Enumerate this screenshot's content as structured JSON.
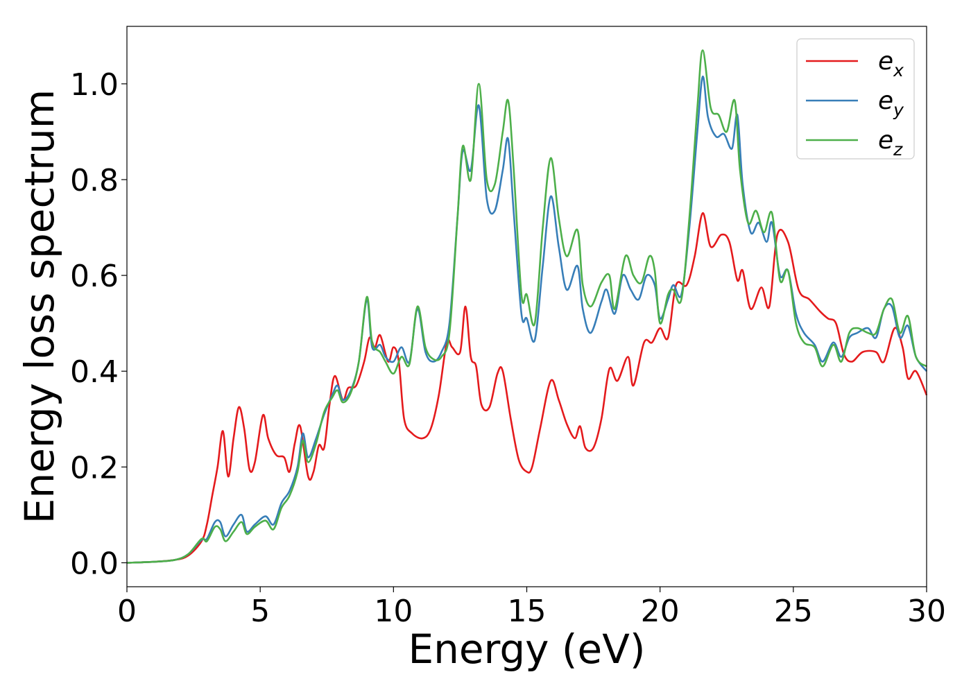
{
  "chart_data": {
    "type": "line",
    "title": "",
    "xlabel": "Energy (eV)",
    "ylabel": "Energy loss spectrum",
    "xlim": [
      0,
      30
    ],
    "ylim": [
      -0.05,
      1.12
    ],
    "xticks": [
      0,
      5,
      10,
      15,
      20,
      25,
      30
    ],
    "xtick_labels": [
      "0",
      "5",
      "10",
      "15",
      "20",
      "25",
      "30"
    ],
    "yticks": [
      0.0,
      0.2,
      0.4,
      0.6,
      0.8,
      1.0
    ],
    "ytick_labels": [
      "0.0",
      "0.2",
      "0.4",
      "0.6",
      "0.8",
      "1.0"
    ],
    "grid": false,
    "legend_position": "top-right",
    "series": [
      {
        "name": "e_x",
        "label_base": "e",
        "label_sub": "x",
        "color": "#e41a1c",
        "points": [
          [
            0,
            0
          ],
          [
            1,
            0.002
          ],
          [
            1.8,
            0.006
          ],
          [
            2.3,
            0.015
          ],
          [
            2.8,
            0.045
          ],
          [
            3.0,
            0.08
          ],
          [
            3.2,
            0.14
          ],
          [
            3.4,
            0.2
          ],
          [
            3.6,
            0.275
          ],
          [
            3.8,
            0.18
          ],
          [
            4.0,
            0.26
          ],
          [
            4.2,
            0.325
          ],
          [
            4.4,
            0.28
          ],
          [
            4.6,
            0.195
          ],
          [
            4.8,
            0.21
          ],
          [
            5.1,
            0.308
          ],
          [
            5.3,
            0.26
          ],
          [
            5.6,
            0.225
          ],
          [
            5.9,
            0.22
          ],
          [
            6.1,
            0.19
          ],
          [
            6.3,
            0.25
          ],
          [
            6.5,
            0.285
          ],
          [
            6.8,
            0.18
          ],
          [
            7.0,
            0.19
          ],
          [
            7.2,
            0.245
          ],
          [
            7.4,
            0.24
          ],
          [
            7.6,
            0.33
          ],
          [
            7.8,
            0.39
          ],
          [
            8.1,
            0.34
          ],
          [
            8.3,
            0.365
          ],
          [
            8.6,
            0.37
          ],
          [
            8.9,
            0.42
          ],
          [
            9.1,
            0.47
          ],
          [
            9.3,
            0.45
          ],
          [
            9.5,
            0.475
          ],
          [
            9.8,
            0.42
          ],
          [
            10.0,
            0.45
          ],
          [
            10.2,
            0.42
          ],
          [
            10.4,
            0.3
          ],
          [
            10.7,
            0.27
          ],
          [
            11.1,
            0.26
          ],
          [
            11.4,
            0.28
          ],
          [
            11.7,
            0.35
          ],
          [
            12.0,
            0.46
          ],
          [
            12.2,
            0.45
          ],
          [
            12.5,
            0.44
          ],
          [
            12.7,
            0.535
          ],
          [
            12.9,
            0.43
          ],
          [
            13.1,
            0.41
          ],
          [
            13.3,
            0.33
          ],
          [
            13.6,
            0.325
          ],
          [
            13.9,
            0.395
          ],
          [
            14.1,
            0.4
          ],
          [
            14.4,
            0.3
          ],
          [
            14.7,
            0.215
          ],
          [
            15.0,
            0.19
          ],
          [
            15.2,
            0.2
          ],
          [
            15.5,
            0.28
          ],
          [
            15.9,
            0.38
          ],
          [
            16.2,
            0.34
          ],
          [
            16.5,
            0.29
          ],
          [
            16.8,
            0.26
          ],
          [
            17.0,
            0.285
          ],
          [
            17.2,
            0.24
          ],
          [
            17.5,
            0.24
          ],
          [
            17.8,
            0.3
          ],
          [
            18.1,
            0.405
          ],
          [
            18.4,
            0.38
          ],
          [
            18.8,
            0.43
          ],
          [
            19.0,
            0.37
          ],
          [
            19.4,
            0.46
          ],
          [
            19.7,
            0.46
          ],
          [
            20.0,
            0.49
          ],
          [
            20.3,
            0.47
          ],
          [
            20.6,
            0.58
          ],
          [
            21.0,
            0.58
          ],
          [
            21.3,
            0.64
          ],
          [
            21.6,
            0.73
          ],
          [
            21.9,
            0.66
          ],
          [
            22.3,
            0.685
          ],
          [
            22.6,
            0.67
          ],
          [
            22.9,
            0.59
          ],
          [
            23.1,
            0.61
          ],
          [
            23.4,
            0.53
          ],
          [
            23.8,
            0.575
          ],
          [
            24.1,
            0.535
          ],
          [
            24.4,
            0.685
          ],
          [
            24.8,
            0.67
          ],
          [
            25.2,
            0.57
          ],
          [
            25.6,
            0.55
          ],
          [
            26.0,
            0.525
          ],
          [
            26.3,
            0.51
          ],
          [
            26.6,
            0.5
          ],
          [
            26.9,
            0.435
          ],
          [
            27.2,
            0.42
          ],
          [
            27.6,
            0.44
          ],
          [
            28.1,
            0.44
          ],
          [
            28.4,
            0.42
          ],
          [
            28.8,
            0.49
          ],
          [
            29.1,
            0.45
          ],
          [
            29.3,
            0.385
          ],
          [
            29.6,
            0.4
          ],
          [
            30,
            0.35
          ]
        ]
      },
      {
        "name": "e_y",
        "label_base": "e",
        "label_sub": "y",
        "color": "#377eb8",
        "points": [
          [
            0,
            0
          ],
          [
            1,
            0.002
          ],
          [
            1.8,
            0.006
          ],
          [
            2.3,
            0.018
          ],
          [
            2.8,
            0.048
          ],
          [
            3.0,
            0.05
          ],
          [
            3.3,
            0.085
          ],
          [
            3.5,
            0.085
          ],
          [
            3.7,
            0.055
          ],
          [
            4.0,
            0.08
          ],
          [
            4.3,
            0.1
          ],
          [
            4.5,
            0.065
          ],
          [
            4.8,
            0.08
          ],
          [
            5.2,
            0.097
          ],
          [
            5.5,
            0.08
          ],
          [
            5.8,
            0.125
          ],
          [
            6.1,
            0.15
          ],
          [
            6.4,
            0.2
          ],
          [
            6.6,
            0.27
          ],
          [
            6.8,
            0.22
          ],
          [
            7.1,
            0.26
          ],
          [
            7.4,
            0.31
          ],
          [
            7.7,
            0.35
          ],
          [
            7.9,
            0.37
          ],
          [
            8.1,
            0.34
          ],
          [
            8.4,
            0.36
          ],
          [
            8.7,
            0.42
          ],
          [
            9.0,
            0.55
          ],
          [
            9.2,
            0.45
          ],
          [
            9.5,
            0.455
          ],
          [
            9.7,
            0.43
          ],
          [
            10.0,
            0.42
          ],
          [
            10.3,
            0.45
          ],
          [
            10.6,
            0.42
          ],
          [
            10.9,
            0.53
          ],
          [
            11.2,
            0.44
          ],
          [
            11.5,
            0.42
          ],
          [
            11.8,
            0.44
          ],
          [
            12.1,
            0.5
          ],
          [
            12.4,
            0.72
          ],
          [
            12.6,
            0.86
          ],
          [
            12.9,
            0.82
          ],
          [
            13.2,
            0.955
          ],
          [
            13.5,
            0.76
          ],
          [
            13.8,
            0.735
          ],
          [
            14.1,
            0.82
          ],
          [
            14.3,
            0.885
          ],
          [
            14.5,
            0.74
          ],
          [
            14.8,
            0.52
          ],
          [
            15.0,
            0.51
          ],
          [
            15.3,
            0.465
          ],
          [
            15.6,
            0.62
          ],
          [
            15.9,
            0.765
          ],
          [
            16.2,
            0.66
          ],
          [
            16.5,
            0.57
          ],
          [
            16.9,
            0.62
          ],
          [
            17.1,
            0.53
          ],
          [
            17.4,
            0.48
          ],
          [
            17.8,
            0.545
          ],
          [
            18.0,
            0.57
          ],
          [
            18.3,
            0.52
          ],
          [
            18.6,
            0.6
          ],
          [
            18.9,
            0.57
          ],
          [
            19.2,
            0.55
          ],
          [
            19.5,
            0.6
          ],
          [
            19.8,
            0.58
          ],
          [
            20.0,
            0.51
          ],
          [
            20.3,
            0.55
          ],
          [
            20.5,
            0.58
          ],
          [
            20.8,
            0.56
          ],
          [
            21.1,
            0.7
          ],
          [
            21.4,
            0.9
          ],
          [
            21.6,
            1.015
          ],
          [
            21.8,
            0.93
          ],
          [
            22.1,
            0.89
          ],
          [
            22.4,
            0.895
          ],
          [
            22.7,
            0.865
          ],
          [
            22.9,
            0.935
          ],
          [
            23.1,
            0.79
          ],
          [
            23.4,
            0.69
          ],
          [
            23.7,
            0.71
          ],
          [
            24.0,
            0.67
          ],
          [
            24.2,
            0.71
          ],
          [
            24.5,
            0.6
          ],
          [
            24.8,
            0.61
          ],
          [
            25.1,
            0.52
          ],
          [
            25.4,
            0.48
          ],
          [
            25.8,
            0.455
          ],
          [
            26.1,
            0.42
          ],
          [
            26.5,
            0.46
          ],
          [
            26.8,
            0.43
          ],
          [
            27.1,
            0.47
          ],
          [
            27.4,
            0.48
          ],
          [
            27.8,
            0.49
          ],
          [
            28.1,
            0.47
          ],
          [
            28.4,
            0.53
          ],
          [
            28.7,
            0.535
          ],
          [
            29.0,
            0.47
          ],
          [
            29.3,
            0.495
          ],
          [
            29.6,
            0.43
          ],
          [
            30,
            0.4
          ]
        ]
      },
      {
        "name": "e_z",
        "label_base": "e",
        "label_sub": "z",
        "color": "#4daf4a",
        "points": [
          [
            0,
            0
          ],
          [
            1,
            0.002
          ],
          [
            1.8,
            0.006
          ],
          [
            2.3,
            0.018
          ],
          [
            2.8,
            0.05
          ],
          [
            3.0,
            0.045
          ],
          [
            3.3,
            0.075
          ],
          [
            3.5,
            0.07
          ],
          [
            3.7,
            0.045
          ],
          [
            4.0,
            0.065
          ],
          [
            4.3,
            0.085
          ],
          [
            4.5,
            0.06
          ],
          [
            4.8,
            0.075
          ],
          [
            5.2,
            0.088
          ],
          [
            5.5,
            0.07
          ],
          [
            5.8,
            0.115
          ],
          [
            6.1,
            0.14
          ],
          [
            6.4,
            0.19
          ],
          [
            6.6,
            0.255
          ],
          [
            6.8,
            0.21
          ],
          [
            7.1,
            0.25
          ],
          [
            7.4,
            0.315
          ],
          [
            7.7,
            0.345
          ],
          [
            7.9,
            0.36
          ],
          [
            8.1,
            0.335
          ],
          [
            8.4,
            0.355
          ],
          [
            8.7,
            0.42
          ],
          [
            9.0,
            0.555
          ],
          [
            9.2,
            0.46
          ],
          [
            9.5,
            0.44
          ],
          [
            9.7,
            0.42
          ],
          [
            10.0,
            0.395
          ],
          [
            10.3,
            0.43
          ],
          [
            10.6,
            0.415
          ],
          [
            10.9,
            0.535
          ],
          [
            11.2,
            0.45
          ],
          [
            11.5,
            0.425
          ],
          [
            11.8,
            0.43
          ],
          [
            12.1,
            0.48
          ],
          [
            12.4,
            0.72
          ],
          [
            12.6,
            0.87
          ],
          [
            12.9,
            0.8
          ],
          [
            13.2,
            1.0
          ],
          [
            13.5,
            0.8
          ],
          [
            13.8,
            0.79
          ],
          [
            14.1,
            0.9
          ],
          [
            14.3,
            0.965
          ],
          [
            14.5,
            0.83
          ],
          [
            14.8,
            0.56
          ],
          [
            15.0,
            0.56
          ],
          [
            15.3,
            0.5
          ],
          [
            15.6,
            0.7
          ],
          [
            15.9,
            0.845
          ],
          [
            16.2,
            0.72
          ],
          [
            16.5,
            0.64
          ],
          [
            16.9,
            0.695
          ],
          [
            17.1,
            0.58
          ],
          [
            17.4,
            0.535
          ],
          [
            17.8,
            0.585
          ],
          [
            18.1,
            0.6
          ],
          [
            18.3,
            0.53
          ],
          [
            18.7,
            0.64
          ],
          [
            19.0,
            0.6
          ],
          [
            19.3,
            0.585
          ],
          [
            19.6,
            0.64
          ],
          [
            19.8,
            0.61
          ],
          [
            20.0,
            0.5
          ],
          [
            20.3,
            0.56
          ],
          [
            20.5,
            0.57
          ],
          [
            20.8,
            0.55
          ],
          [
            21.1,
            0.72
          ],
          [
            21.4,
            0.95
          ],
          [
            21.6,
            1.07
          ],
          [
            21.9,
            0.95
          ],
          [
            22.2,
            0.935
          ],
          [
            22.5,
            0.9
          ],
          [
            22.8,
            0.965
          ],
          [
            23.0,
            0.82
          ],
          [
            23.3,
            0.71
          ],
          [
            23.6,
            0.735
          ],
          [
            23.9,
            0.69
          ],
          [
            24.2,
            0.73
          ],
          [
            24.5,
            0.59
          ],
          [
            24.8,
            0.61
          ],
          [
            25.1,
            0.5
          ],
          [
            25.4,
            0.46
          ],
          [
            25.8,
            0.45
          ],
          [
            26.1,
            0.41
          ],
          [
            26.5,
            0.455
          ],
          [
            26.8,
            0.42
          ],
          [
            27.1,
            0.48
          ],
          [
            27.4,
            0.49
          ],
          [
            27.8,
            0.48
          ],
          [
            28.1,
            0.48
          ],
          [
            28.4,
            0.53
          ],
          [
            28.7,
            0.55
          ],
          [
            29.0,
            0.48
          ],
          [
            29.3,
            0.515
          ],
          [
            29.6,
            0.43
          ],
          [
            30,
            0.41
          ]
        ]
      }
    ]
  }
}
